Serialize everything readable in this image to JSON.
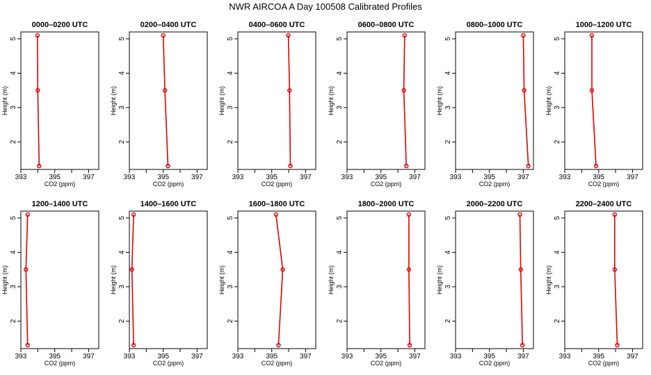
{
  "title": "NWR AIRCOA A  Day 100508  Calibrated Profiles",
  "colors": {
    "profile": "#dd0000",
    "axis": "#000000"
  },
  "chart_data": [
    {
      "type": "line",
      "title": "0000–0200 UTC",
      "xlabel": "CO2 (ppm)",
      "ylabel": "Height (m)",
      "xlim": [
        393,
        397.6
      ],
      "ylim": [
        1.2,
        5.2
      ],
      "xticks": [
        "393",
        "",
        "395",
        "",
        "397"
      ],
      "yticks": [
        "2",
        "3",
        "4",
        "5"
      ],
      "series": [
        {
          "x": [
            394.08,
            394.0,
            393.98
          ],
          "y": [
            1.3,
            3.5,
            5.1
          ]
        }
      ]
    },
    {
      "type": "line",
      "title": "0200–0400 UTC",
      "xlabel": "CO2 (ppm)",
      "ylabel": "Height (m)",
      "xlim": [
        393,
        397.6
      ],
      "ylim": [
        1.2,
        5.2
      ],
      "xticks": [
        "393",
        "",
        "395",
        "",
        "397"
      ],
      "yticks": [
        "2",
        "3",
        "4",
        "5"
      ],
      "series": [
        {
          "x": [
            395.28,
            395.1,
            395.0
          ],
          "y": [
            1.3,
            3.5,
            5.1
          ]
        }
      ]
    },
    {
      "type": "line",
      "title": "0400–0600 UTC",
      "xlabel": "CO2 (ppm)",
      "ylabel": "Height (m)",
      "xlim": [
        393,
        397.6
      ],
      "ylim": [
        1.2,
        5.2
      ],
      "xticks": [
        "393",
        "",
        "395",
        "",
        "397"
      ],
      "yticks": [
        "2",
        "3",
        "4",
        "5"
      ],
      "series": [
        {
          "x": [
            396.1,
            396.05,
            395.98
          ],
          "y": [
            1.3,
            3.5,
            5.1
          ]
        }
      ]
    },
    {
      "type": "line",
      "title": "0600–0800 UTC",
      "xlabel": "CO2 (ppm)",
      "ylabel": "Height (m)",
      "xlim": [
        393,
        397.6
      ],
      "ylim": [
        1.2,
        5.2
      ],
      "xticks": [
        "393",
        "",
        "395",
        "",
        "397"
      ],
      "yticks": [
        "2",
        "3",
        "4",
        "5"
      ],
      "series": [
        {
          "x": [
            396.5,
            396.35,
            396.4
          ],
          "y": [
            1.3,
            3.5,
            5.1
          ]
        }
      ]
    },
    {
      "type": "line",
      "title": "0800–1000 UTC",
      "xlabel": "CO2 (ppm)",
      "ylabel": "Height (m)",
      "xlim": [
        393,
        397.6
      ],
      "ylim": [
        1.2,
        5.2
      ],
      "xticks": [
        "393",
        "",
        "395",
        "",
        "397"
      ],
      "yticks": [
        "2",
        "3",
        "4",
        "5"
      ],
      "series": [
        {
          "x": [
            397.3,
            397.05,
            397.0
          ],
          "y": [
            1.3,
            3.5,
            5.1
          ]
        }
      ]
    },
    {
      "type": "line",
      "title": "1000–1200 UTC",
      "xlabel": "CO2 (ppm)",
      "ylabel": "Height (m)",
      "xlim": [
        393,
        397.6
      ],
      "ylim": [
        1.2,
        5.2
      ],
      "xticks": [
        "393",
        "",
        "395",
        "",
        "397"
      ],
      "yticks": [
        "2",
        "3",
        "4",
        "5"
      ],
      "series": [
        {
          "x": [
            394.85,
            394.6,
            394.6
          ],
          "y": [
            1.3,
            3.5,
            5.1
          ]
        }
      ]
    },
    {
      "type": "line",
      "title": "1200–1400 UTC",
      "xlabel": "CO2 (ppm)",
      "ylabel": "Height (m)",
      "xlim": [
        393,
        397.6
      ],
      "ylim": [
        1.2,
        5.2
      ],
      "xticks": [
        "393",
        "",
        "395",
        "",
        "397"
      ],
      "yticks": [
        "2",
        "3",
        "4",
        "5"
      ],
      "series": [
        {
          "x": [
            393.4,
            393.3,
            393.4
          ],
          "y": [
            1.3,
            3.5,
            5.1
          ]
        }
      ]
    },
    {
      "type": "line",
      "title": "1400–1600 UTC",
      "xlabel": "CO2 (ppm)",
      "ylabel": "Height (m)",
      "xlim": [
        393,
        397.6
      ],
      "ylim": [
        1.2,
        5.2
      ],
      "xticks": [
        "393",
        "",
        "395",
        "",
        "397"
      ],
      "yticks": [
        "2",
        "3",
        "4",
        "5"
      ],
      "series": [
        {
          "x": [
            393.25,
            393.15,
            393.25
          ],
          "y": [
            1.3,
            3.5,
            5.1
          ]
        }
      ]
    },
    {
      "type": "line",
      "title": "1600–1800 UTC",
      "xlabel": "CO2 (ppm)",
      "ylabel": "Height (m)",
      "xlim": [
        393,
        397.6
      ],
      "ylim": [
        1.2,
        5.2
      ],
      "xticks": [
        "393",
        "",
        "395",
        "",
        "397"
      ],
      "yticks": [
        "2",
        "3",
        "4",
        "5"
      ],
      "series": [
        {
          "x": [
            395.4,
            395.65,
            395.25
          ],
          "y": [
            1.3,
            3.5,
            5.1
          ]
        }
      ]
    },
    {
      "type": "line",
      "title": "1800–2000 UTC",
      "xlabel": "CO2 (ppm)",
      "ylabel": "Height (m)",
      "xlim": [
        393,
        397.6
      ],
      "ylim": [
        1.2,
        5.2
      ],
      "xticks": [
        "393",
        "",
        "395",
        "",
        "397"
      ],
      "yticks": [
        "2",
        "3",
        "4",
        "5"
      ],
      "series": [
        {
          "x": [
            396.7,
            396.65,
            396.65
          ],
          "y": [
            1.3,
            3.5,
            5.1
          ]
        }
      ]
    },
    {
      "type": "line",
      "title": "2000–2200 UTC",
      "xlabel": "CO2 (ppm)",
      "ylabel": "Height (m)",
      "xlim": [
        393,
        397.6
      ],
      "ylim": [
        1.2,
        5.2
      ],
      "xticks": [
        "393",
        "",
        "395",
        "",
        "397"
      ],
      "yticks": [
        "2",
        "3",
        "4",
        "5"
      ],
      "series": [
        {
          "x": [
            396.95,
            396.85,
            396.8
          ],
          "y": [
            1.3,
            3.5,
            5.1
          ]
        }
      ]
    },
    {
      "type": "line",
      "title": "2200–2400 UTC",
      "xlabel": "CO2 (ppm)",
      "ylabel": "Height (m)",
      "xlim": [
        393,
        397.6
      ],
      "ylim": [
        1.2,
        5.2
      ],
      "xticks": [
        "393",
        "",
        "395",
        "",
        "397"
      ],
      "yticks": [
        "2",
        "3",
        "4",
        "5"
      ],
      "series": [
        {
          "x": [
            396.1,
            395.95,
            395.95
          ],
          "y": [
            1.3,
            3.5,
            5.1
          ]
        }
      ]
    }
  ]
}
